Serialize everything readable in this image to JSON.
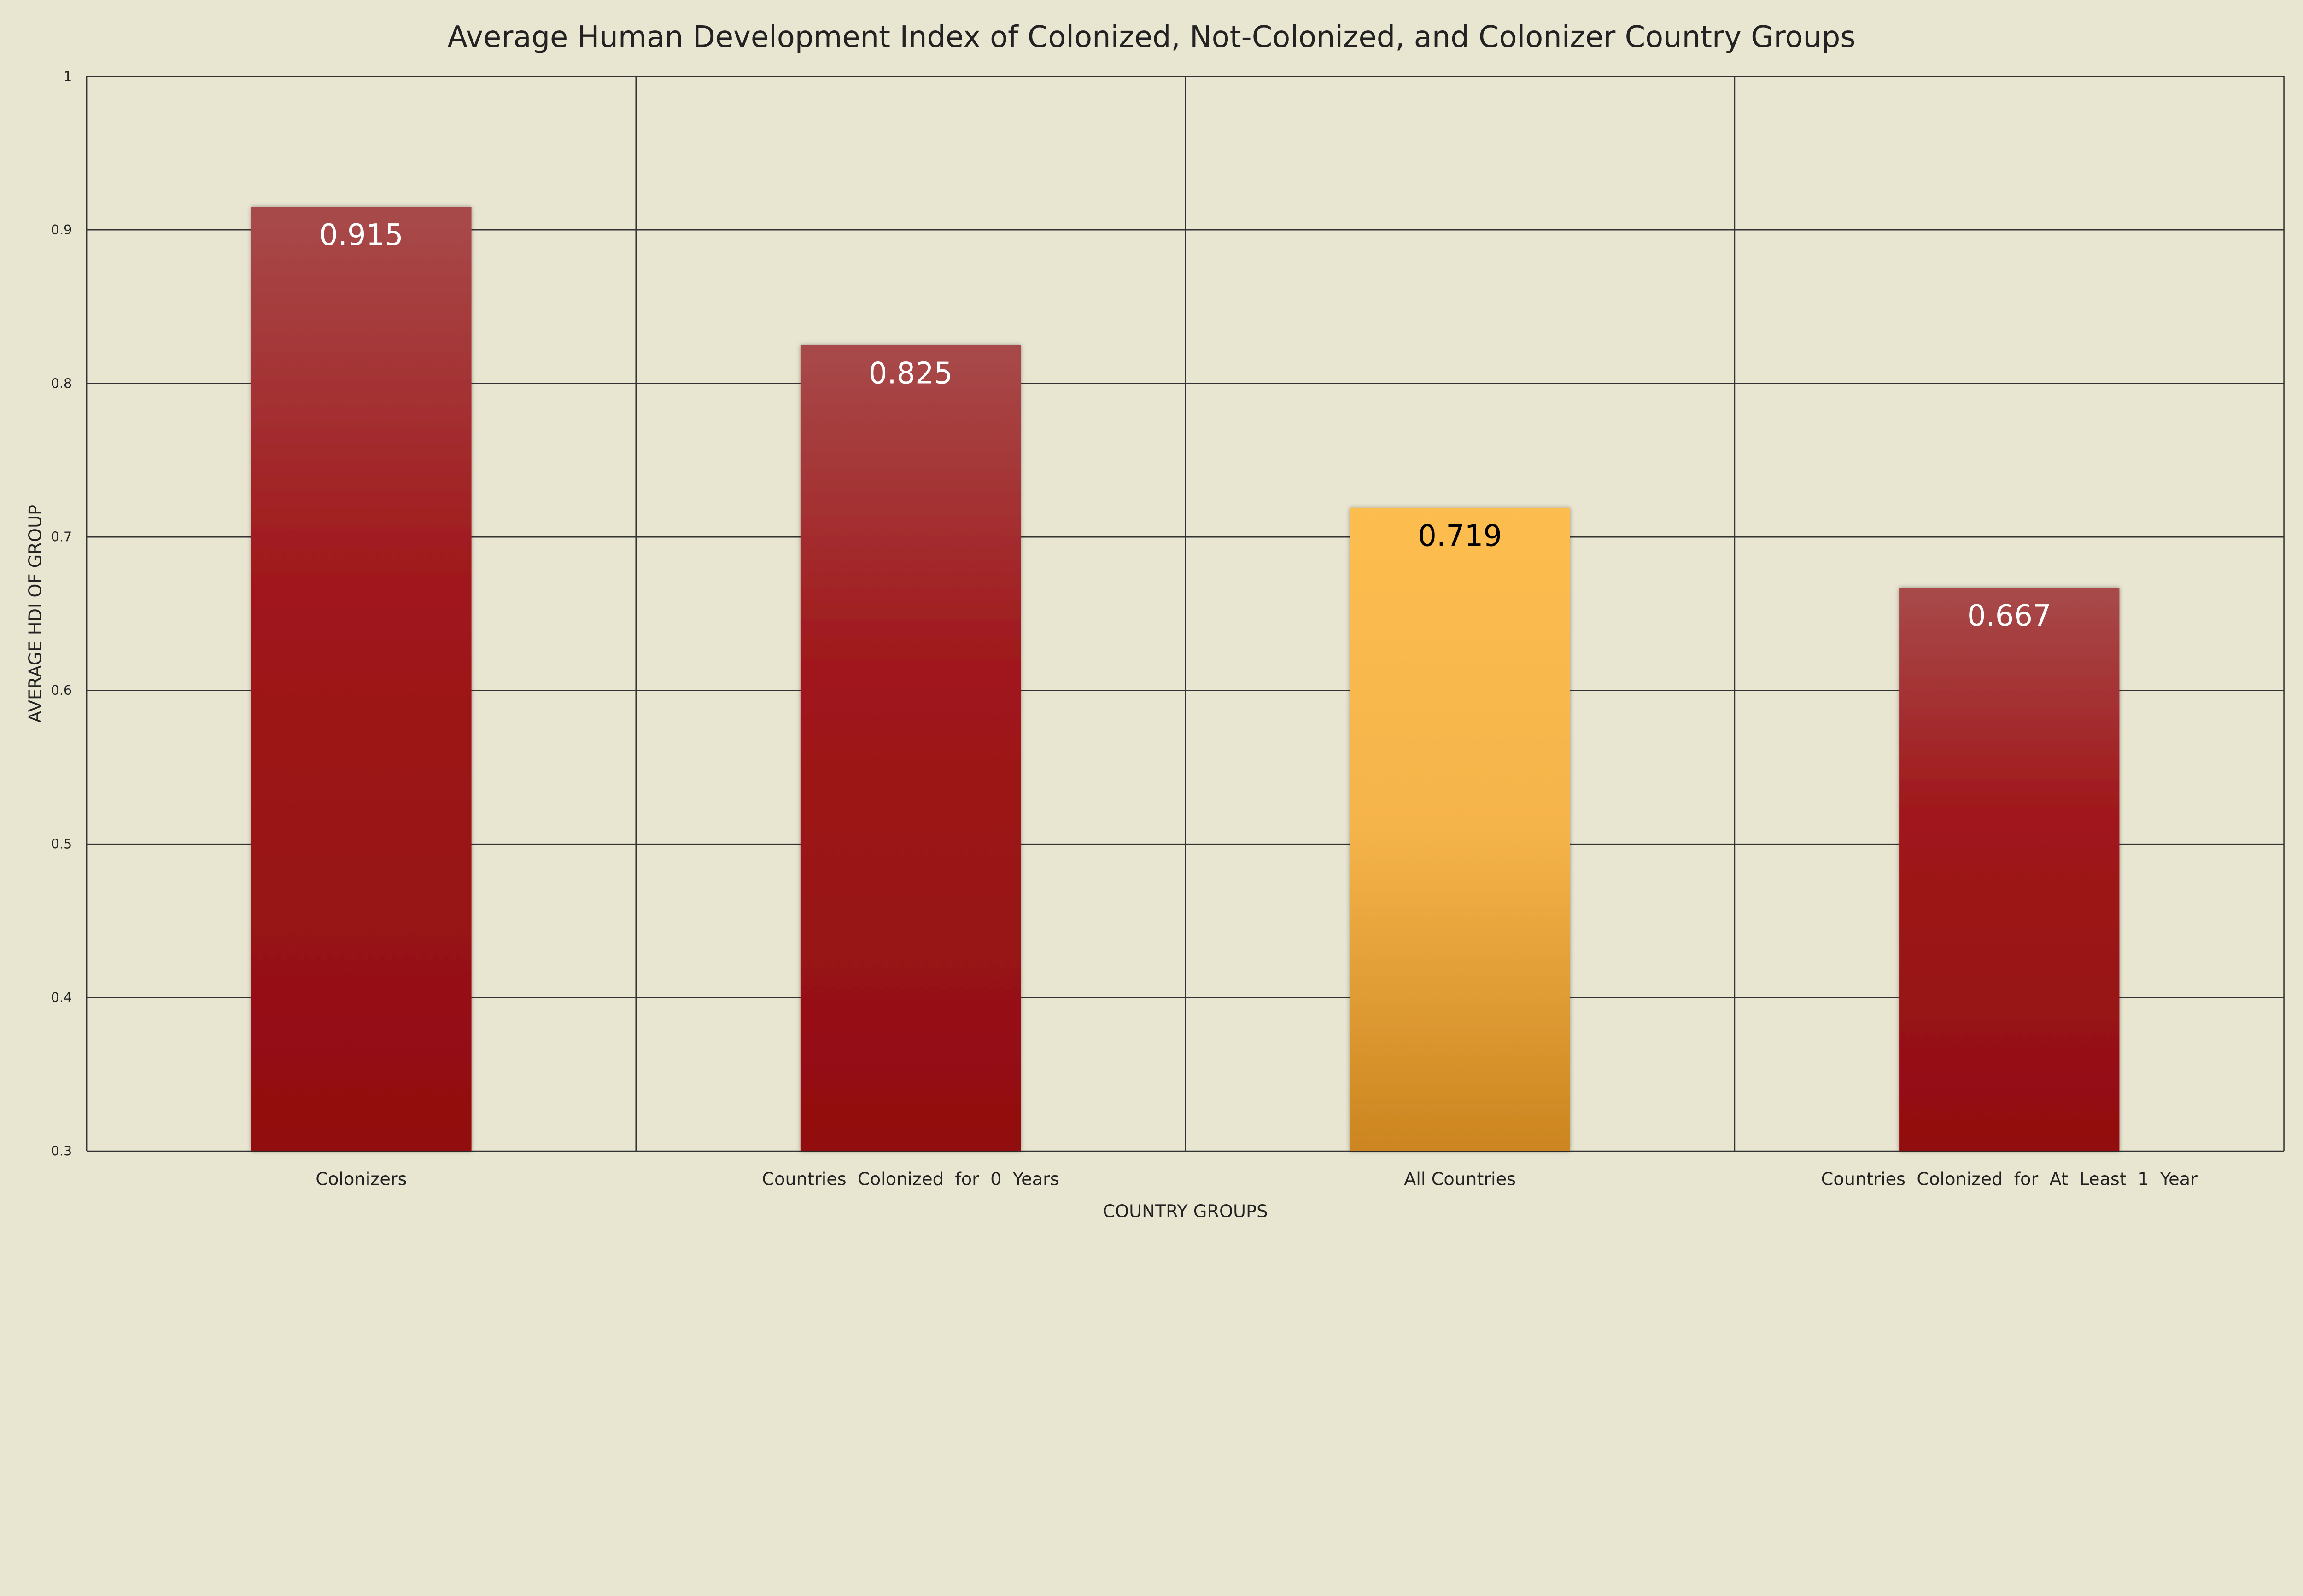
{
  "chart_data": {
    "type": "bar",
    "title": "Average Human Development Index of Colonized, Not-Colonized, and Colonizer Country Groups",
    "xlabel": "COUNTRY GROUPS",
    "ylabel": "AVERAGE HDI OF GROUP",
    "categories": [
      "Colonizers",
      "Countries  Colonized  for  0  Years",
      "All Countries",
      "Countries  Colonized  for  At  Least  1  Year"
    ],
    "values": [
      0.915,
      0.825,
      0.719,
      0.667
    ],
    "data_labels": [
      "0.915",
      "0.825",
      "0.719",
      "0.667"
    ],
    "ylim": [
      0.3,
      1
    ],
    "yticks": [
      "0.3",
      "0.4",
      "0.5",
      "0.6",
      "0.7",
      "0.8",
      "0.9",
      "1"
    ],
    "grid": true,
    "legend": "none",
    "colors": {
      "background": "#e8e5d1",
      "bar_default": "#9b1518",
      "bar_highlight": "#fdbd4f",
      "highlight_category": "All Countries"
    }
  }
}
